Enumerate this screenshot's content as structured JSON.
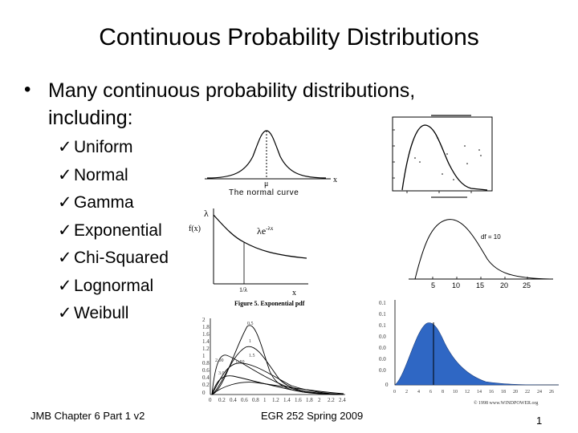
{
  "slide": {
    "title": "Continuous Probability Distributions",
    "bullet": "Many continuous probability distributions, including:",
    "check_glyph": "✓",
    "distributions": [
      "Uniform",
      "Normal",
      "Gamma",
      "Exponential",
      "Chi-Squared",
      "Lognormal",
      "Weibull"
    ]
  },
  "normal_figure": {
    "mu_label": "μ",
    "x_label": "x",
    "caption": "The normal curve"
  },
  "exponential_figure": {
    "lambda_label": "λ",
    "f_label": "f(x)",
    "curve_label": "λe",
    "exponent_label": "-λx",
    "tick_label": "1/λ",
    "x_label": "x",
    "caption": "Figure 5.  Exponential pdf"
  },
  "chi_squared_figure": {
    "df_label": "df = 10",
    "x_ticks": [
      "5",
      "10",
      "15",
      "20",
      "25"
    ]
  },
  "lognormal_figure": {
    "y_ticks": [
      "2",
      "1.8",
      "1.6",
      "1.4",
      "1.2",
      "1",
      "0.8",
      "0.6",
      "0.4",
      "0.2",
      "0"
    ],
    "x_ticks": [
      "0",
      "0.2",
      "0.4",
      "0.6",
      "0.8",
      "1",
      "1.2",
      "1.4",
      "1.6",
      "1.8",
      "2",
      "2.2",
      "2.4"
    ],
    "curve_labels": [
      "0.5",
      "1",
      "1.5",
      "2.00",
      "0.50",
      "3.0"
    ]
  },
  "weibull_figure": {
    "y_ticks": [
      "0.1",
      "0.1",
      "0.1",
      "0.0",
      "0.0",
      "0.0",
      "0.0",
      "0"
    ],
    "x_ticks": [
      "0",
      "2",
      "4",
      "6",
      "8",
      "10",
      "12",
      "14",
      "16",
      "18",
      "20",
      "22",
      "24",
      "26"
    ],
    "credit": "© 1998 www.WINDPOWER.org"
  },
  "colors": {
    "weibull_fill": "#2f67c4",
    "weibull_stroke": "#1d3f7e"
  },
  "footer": {
    "left": "JMB Chapter 6 Part 1 v2",
    "center": "EGR 252 Spring 2009",
    "page": "1"
  }
}
